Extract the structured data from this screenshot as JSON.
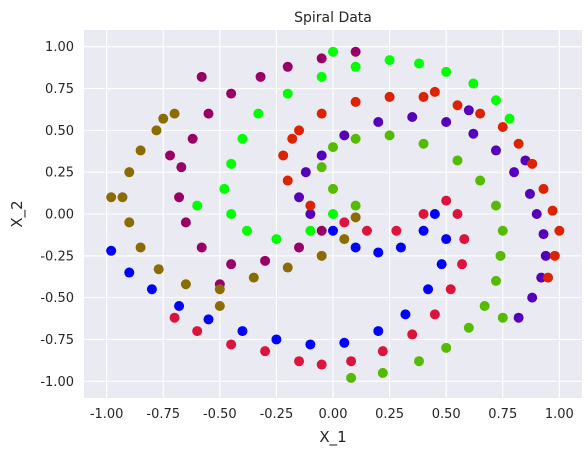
{
  "chart_data": {
    "type": "scatter",
    "title": "Spiral Data",
    "xlabel": "X_1",
    "ylabel": "X_2",
    "xlim": [
      -1.1,
      1.1
    ],
    "ylim": [
      -1.1,
      1.1
    ],
    "xticks": [
      "-1.00",
      "-0.75",
      "-0.50",
      "-0.25",
      "0.00",
      "0.25",
      "0.50",
      "0.75",
      "1.00"
    ],
    "yticks": [
      "-1.00",
      "-0.75",
      "-0.50",
      "-0.25",
      "0.00",
      "0.25",
      "0.50",
      "0.75",
      "1.00"
    ],
    "grid": true,
    "background": "#eaeaf2",
    "gridColor": "#ffffff",
    "series": [
      {
        "color": "#0000ff",
        "points": [
          [
            0.0,
            -0.1
          ],
          [
            0.1,
            -0.2
          ],
          [
            0.2,
            -0.23
          ],
          [
            0.3,
            -0.2
          ],
          [
            0.4,
            -0.1
          ],
          [
            0.45,
            0.0
          ],
          [
            0.5,
            -0.15
          ],
          [
            0.48,
            -0.3
          ],
          [
            0.42,
            -0.45
          ],
          [
            0.32,
            -0.6
          ],
          [
            0.2,
            -0.7
          ],
          [
            0.05,
            -0.77
          ],
          [
            -0.1,
            -0.78
          ],
          [
            -0.25,
            -0.75
          ],
          [
            -0.4,
            -0.7
          ],
          [
            -0.55,
            -0.63
          ],
          [
            -0.68,
            -0.55
          ],
          [
            -0.8,
            -0.45
          ],
          [
            -0.9,
            -0.35
          ],
          [
            -0.98,
            -0.22
          ]
        ]
      },
      {
        "color": "#dc143c",
        "points": [
          [
            0.05,
            -0.05
          ],
          [
            0.15,
            -0.1
          ],
          [
            0.28,
            -0.1
          ],
          [
            0.4,
            0.0
          ],
          [
            0.5,
            0.08
          ],
          [
            0.55,
            0.0
          ],
          [
            0.58,
            -0.15
          ],
          [
            0.57,
            -0.3
          ],
          [
            0.52,
            -0.45
          ],
          [
            0.45,
            -0.6
          ],
          [
            0.35,
            -0.72
          ],
          [
            0.22,
            -0.82
          ],
          [
            0.08,
            -0.88
          ],
          [
            -0.05,
            -0.9
          ],
          [
            -0.15,
            -0.88
          ],
          [
            -0.3,
            -0.82
          ],
          [
            -0.45,
            -0.78
          ],
          [
            -0.6,
            -0.7
          ],
          [
            -0.7,
            -0.62
          ]
        ]
      },
      {
        "color": "#55bb00",
        "points": [
          [
            0.1,
            0.05
          ],
          [
            0.0,
            0.15
          ],
          [
            -0.05,
            0.28
          ],
          [
            0.0,
            0.4
          ],
          [
            0.1,
            0.45
          ],
          [
            0.25,
            0.47
          ],
          [
            0.4,
            0.42
          ],
          [
            0.55,
            0.32
          ],
          [
            0.65,
            0.2
          ],
          [
            0.72,
            0.05
          ],
          [
            0.75,
            -0.1
          ],
          [
            0.74,
            -0.25
          ],
          [
            0.72,
            -0.4
          ],
          [
            0.67,
            -0.55
          ],
          [
            0.6,
            -0.68
          ],
          [
            0.5,
            -0.8
          ],
          [
            0.38,
            -0.88
          ],
          [
            0.22,
            -0.95
          ],
          [
            0.08,
            -0.98
          ],
          [
            0.75,
            -0.62
          ]
        ]
      },
      {
        "color": "#5500bb",
        "points": [
          [
            -0.1,
            0.0
          ],
          [
            -0.15,
            0.1
          ],
          [
            -0.12,
            0.25
          ],
          [
            -0.05,
            0.35
          ],
          [
            0.05,
            0.47
          ],
          [
            0.2,
            0.55
          ],
          [
            0.35,
            0.58
          ],
          [
            0.5,
            0.55
          ],
          [
            0.62,
            0.48
          ],
          [
            0.72,
            0.38
          ],
          [
            0.8,
            0.25
          ],
          [
            0.87,
            0.12
          ],
          [
            0.9,
            0.0
          ],
          [
            0.93,
            -0.12
          ],
          [
            0.94,
            -0.25
          ],
          [
            0.92,
            -0.38
          ],
          [
            0.88,
            -0.5
          ],
          [
            0.82,
            -0.62
          ],
          [
            0.6,
            0.62
          ],
          [
            0.85,
            0.32
          ]
        ]
      },
      {
        "color": "#dd2200",
        "points": [
          [
            -0.1,
            0.05
          ],
          [
            -0.2,
            0.2
          ],
          [
            -0.22,
            0.35
          ],
          [
            -0.15,
            0.5
          ],
          [
            -0.05,
            0.6
          ],
          [
            0.1,
            0.67
          ],
          [
            0.25,
            0.7
          ],
          [
            0.4,
            0.7
          ],
          [
            0.55,
            0.65
          ],
          [
            0.65,
            0.6
          ],
          [
            0.75,
            0.52
          ],
          [
            0.82,
            0.42
          ],
          [
            0.88,
            0.3
          ],
          [
            0.93,
            0.15
          ],
          [
            0.97,
            0.02
          ],
          [
            1.0,
            -0.1
          ],
          [
            0.98,
            -0.25
          ],
          [
            0.95,
            -0.38
          ],
          [
            0.45,
            0.73
          ],
          [
            -0.18,
            0.45
          ]
        ]
      },
      {
        "color": "#00ff00",
        "points": [
          [
            0.0,
            0.0
          ],
          [
            -0.1,
            -0.1
          ],
          [
            -0.25,
            -0.15
          ],
          [
            -0.38,
            -0.1
          ],
          [
            -0.45,
            0.0
          ],
          [
            -0.48,
            0.15
          ],
          [
            -0.45,
            0.3
          ],
          [
            -0.4,
            0.45
          ],
          [
            -0.33,
            0.6
          ],
          [
            -0.2,
            0.72
          ],
          [
            -0.05,
            0.82
          ],
          [
            0.1,
            0.88
          ],
          [
            0.25,
            0.92
          ],
          [
            0.38,
            0.9
          ],
          [
            0.5,
            0.85
          ],
          [
            0.62,
            0.78
          ],
          [
            0.72,
            0.68
          ],
          [
            0.78,
            0.57
          ],
          [
            0.0,
            0.97
          ],
          [
            -0.6,
            0.05
          ]
        ]
      },
      {
        "color": "#990066",
        "points": [
          [
            -0.05,
            -0.1
          ],
          [
            -0.15,
            -0.2
          ],
          [
            -0.3,
            -0.28
          ],
          [
            -0.45,
            -0.3
          ],
          [
            -0.58,
            -0.2
          ],
          [
            -0.65,
            -0.05
          ],
          [
            -0.68,
            0.1
          ],
          [
            -0.67,
            0.28
          ],
          [
            -0.62,
            0.45
          ],
          [
            -0.55,
            0.6
          ],
          [
            -0.45,
            0.72
          ],
          [
            -0.32,
            0.82
          ],
          [
            -0.2,
            0.88
          ],
          [
            -0.05,
            0.93
          ],
          [
            0.1,
            0.97
          ],
          [
            -0.5,
            -0.42
          ],
          [
            -0.72,
            0.35
          ],
          [
            -0.58,
            0.82
          ]
        ]
      },
      {
        "color": "#8b6c00",
        "points": [
          [
            0.1,
            -0.02
          ],
          [
            0.05,
            -0.15
          ],
          [
            -0.05,
            -0.25
          ],
          [
            -0.2,
            -0.32
          ],
          [
            -0.35,
            -0.38
          ],
          [
            -0.5,
            -0.45
          ],
          [
            -0.65,
            -0.42
          ],
          [
            -0.77,
            -0.33
          ],
          [
            -0.85,
            -0.2
          ],
          [
            -0.9,
            -0.05
          ],
          [
            -0.93,
            0.1
          ],
          [
            -0.9,
            0.25
          ],
          [
            -0.85,
            0.38
          ],
          [
            -0.78,
            0.5
          ],
          [
            -0.7,
            0.6
          ],
          [
            -0.5,
            -0.55
          ],
          [
            -0.98,
            0.1
          ],
          [
            -0.75,
            0.57
          ]
        ]
      }
    ]
  }
}
